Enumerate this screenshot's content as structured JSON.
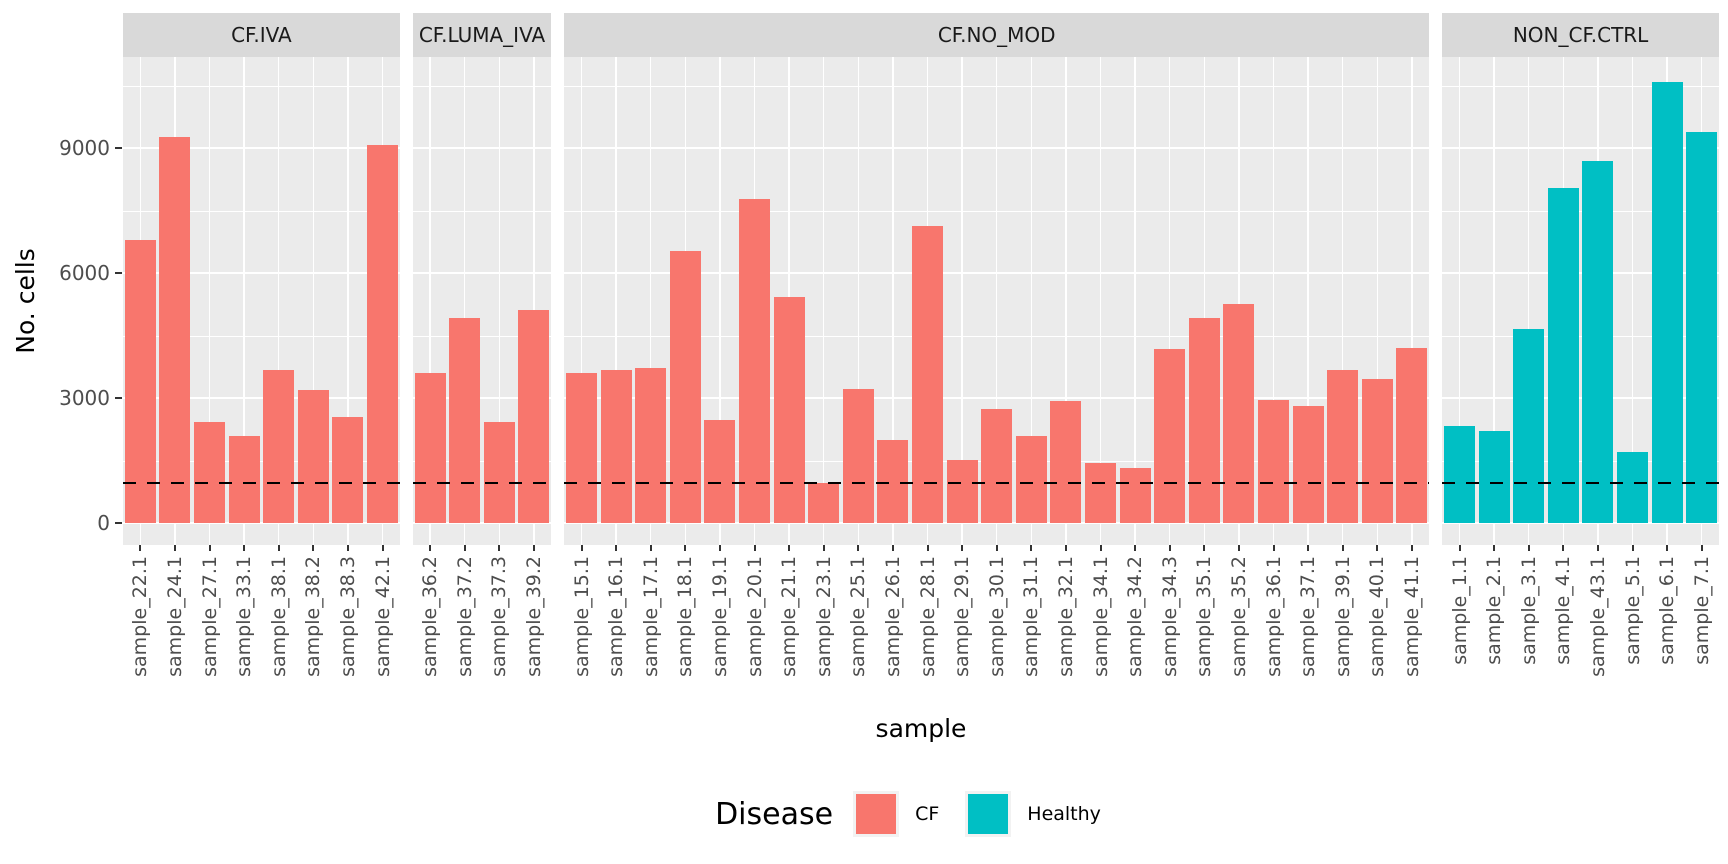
{
  "y_axis": {
    "title": "No. cells",
    "ticks": [
      "0",
      "3000",
      "6000",
      "9000"
    ]
  },
  "x_axis": {
    "title": "sample"
  },
  "legend": {
    "title": "Disease",
    "items": [
      {
        "label": "CF",
        "color": "#F8766D"
      },
      {
        "label": "Healthy",
        "color": "#00BFC4"
      }
    ]
  },
  "chart_data": {
    "type": "bar",
    "title": "",
    "xlabel": "sample",
    "ylabel": "No. cells",
    "yticks": [
      0,
      3000,
      6000,
      9000
    ],
    "minor_gridlines": [
      1500,
      4500,
      7500,
      10500
    ],
    "ylim": [
      -540,
      11190
    ],
    "grid": true,
    "legend_position": "bottom",
    "hline": {
      "y": 1000,
      "style": "dashed",
      "color": "#000000"
    },
    "panel_background": "#EBEBEB",
    "strip_background": "#D9D9D9",
    "facets": [
      {
        "label": "CF.IVA",
        "group": "CF",
        "color": "#F8766D",
        "samples": [
          "sample_22.1",
          "sample_24.1",
          "sample_27.1",
          "sample_33.1",
          "sample_38.1",
          "sample_38.2",
          "sample_38.3",
          "sample_42.1"
        ],
        "values": [
          6800,
          9270,
          2430,
          2100,
          3680,
          3200,
          2550,
          9080
        ]
      },
      {
        "label": "CF.LUMA_IVA",
        "group": "CF",
        "color": "#F8766D",
        "samples": [
          "sample_36.2",
          "sample_37.2",
          "sample_37.3",
          "sample_39.2"
        ],
        "values": [
          3610,
          4930,
          2430,
          5120
        ]
      },
      {
        "label": "CF.NO_MOD",
        "group": "CF",
        "color": "#F8766D",
        "samples": [
          "sample_15.1",
          "sample_16.1",
          "sample_17.1",
          "sample_18.1",
          "sample_19.1",
          "sample_20.1",
          "sample_21.1",
          "sample_23.1",
          "sample_25.1",
          "sample_26.1",
          "sample_28.1",
          "sample_29.1",
          "sample_30.1",
          "sample_31.1",
          "sample_32.1",
          "sample_34.1",
          "sample_34.2",
          "sample_34.3",
          "sample_35.1",
          "sample_35.2",
          "sample_36.1",
          "sample_37.1",
          "sample_39.1",
          "sample_40.1",
          "sample_41.1"
        ],
        "values": [
          3610,
          3680,
          3730,
          6540,
          2480,
          7780,
          5430,
          970,
          3220,
          2000,
          7140,
          1520,
          2740,
          2100,
          2940,
          1450,
          1330,
          4180,
          4930,
          5260,
          2960,
          2820,
          3680,
          3460,
          4210
        ]
      },
      {
        "label": "NON_CF.CTRL",
        "group": "Healthy",
        "color": "#00BFC4",
        "samples": [
          "sample_1.1",
          "sample_2.1",
          "sample_3.1",
          "sample_4.1",
          "sample_43.1",
          "sample_5.1",
          "sample_6.1",
          "sample_7.1"
        ],
        "values": [
          2340,
          2220,
          4670,
          8050,
          8700,
          1700,
          10600,
          9400
        ]
      }
    ]
  }
}
